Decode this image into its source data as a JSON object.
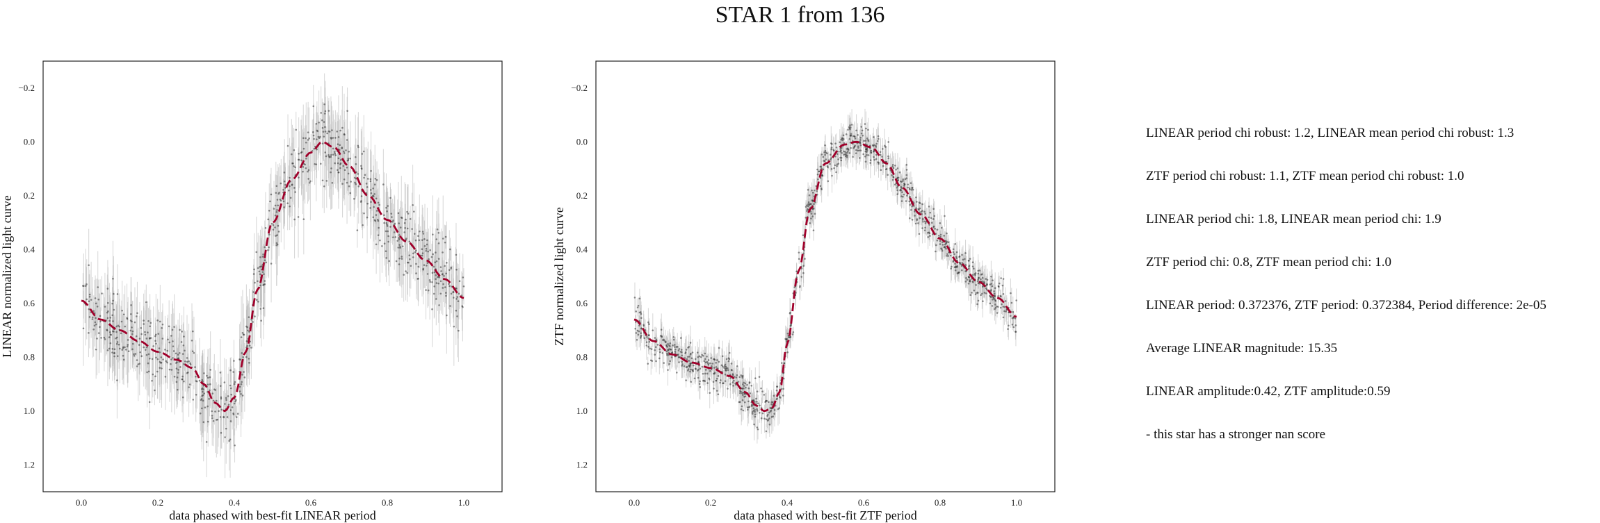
{
  "figure": {
    "title": "STAR 1 from 136"
  },
  "colors": {
    "data_points": "#333333",
    "error_bars": "#bbbbbb",
    "fit_line": "#a0002a",
    "frame": "#222222"
  },
  "info_panel": {
    "lines": [
      "LINEAR period chi robust: 1.2, LINEAR mean period chi robust: 1.3",
      "ZTF period chi robust: 1.1, ZTF mean period chi robust: 1.0",
      "LINEAR period chi: 1.8, LINEAR mean period chi: 1.9",
      "ZTF period chi: 0.8, ZTF mean period chi: 1.0",
      "LINEAR period: 0.372376, ZTF period: 0.372384, Period difference: 2e-05",
      "Average LINEAR magnitude: 15.35",
      "LINEAR amplitude:0.42, ZTF amplitude:0.59",
      "- this star has a stronger nan score"
    ]
  },
  "chart_data": [
    {
      "type": "scatter",
      "xlabel": "data phased with best-fit LINEAR period",
      "ylabel": "LINEAR normalized light curve",
      "xlim": [
        -0.1,
        1.1
      ],
      "ylim": [
        1.3,
        -0.3
      ],
      "y_inverted": true,
      "xticks": [
        "0.0",
        "0.2",
        "0.4",
        "0.6",
        "0.8",
        "1.0"
      ],
      "yticks": [
        "−0.2",
        "0.0",
        "0.2",
        "0.4",
        "0.6",
        "0.8",
        "1.0",
        "1.2"
      ],
      "grid": false,
      "error_bars": true,
      "point_scatter": 0.07,
      "error_bar_size": 0.1,
      "n_points": 900,
      "fit_curve": {
        "style": "dashed",
        "x": [
          0.0,
          0.05,
          0.1,
          0.15,
          0.2,
          0.25,
          0.29,
          0.32,
          0.35,
          0.375,
          0.4,
          0.43,
          0.46,
          0.5,
          0.55,
          0.6,
          0.63,
          0.66,
          0.7,
          0.75,
          0.8,
          0.85,
          0.9,
          0.95,
          1.0
        ],
        "y": [
          0.59,
          0.66,
          0.7,
          0.74,
          0.78,
          0.81,
          0.84,
          0.9,
          0.97,
          1.0,
          0.95,
          0.78,
          0.55,
          0.3,
          0.14,
          0.04,
          0.0,
          0.02,
          0.09,
          0.2,
          0.29,
          0.37,
          0.44,
          0.51,
          0.58
        ]
      }
    },
    {
      "type": "scatter",
      "xlabel": "data phased with best-fit ZTF period",
      "ylabel": "ZTF normalized light curve",
      "xlim": [
        -0.1,
        1.1
      ],
      "ylim": [
        1.3,
        -0.3
      ],
      "y_inverted": true,
      "xticks": [
        "0.0",
        "0.2",
        "0.4",
        "0.6",
        "0.8",
        "1.0"
      ],
      "yticks": [
        "−0.2",
        "0.0",
        "0.2",
        "0.4",
        "0.6",
        "0.8",
        "1.0",
        "1.2"
      ],
      "grid": false,
      "error_bars": true,
      "point_scatter": 0.035,
      "error_bar_size": 0.04,
      "n_points": 1100,
      "fit_curve": {
        "style": "dashed",
        "x": [
          0.0,
          0.05,
          0.1,
          0.15,
          0.2,
          0.25,
          0.29,
          0.32,
          0.34,
          0.36,
          0.38,
          0.4,
          0.43,
          0.46,
          0.5,
          0.55,
          0.58,
          0.62,
          0.66,
          0.7,
          0.75,
          0.8,
          0.85,
          0.9,
          0.95,
          1.0
        ],
        "y": [
          0.66,
          0.74,
          0.79,
          0.82,
          0.84,
          0.87,
          0.93,
          0.98,
          1.0,
          0.99,
          0.93,
          0.75,
          0.48,
          0.25,
          0.08,
          0.01,
          0.0,
          0.02,
          0.08,
          0.17,
          0.27,
          0.36,
          0.45,
          0.52,
          0.58,
          0.65
        ]
      }
    }
  ]
}
